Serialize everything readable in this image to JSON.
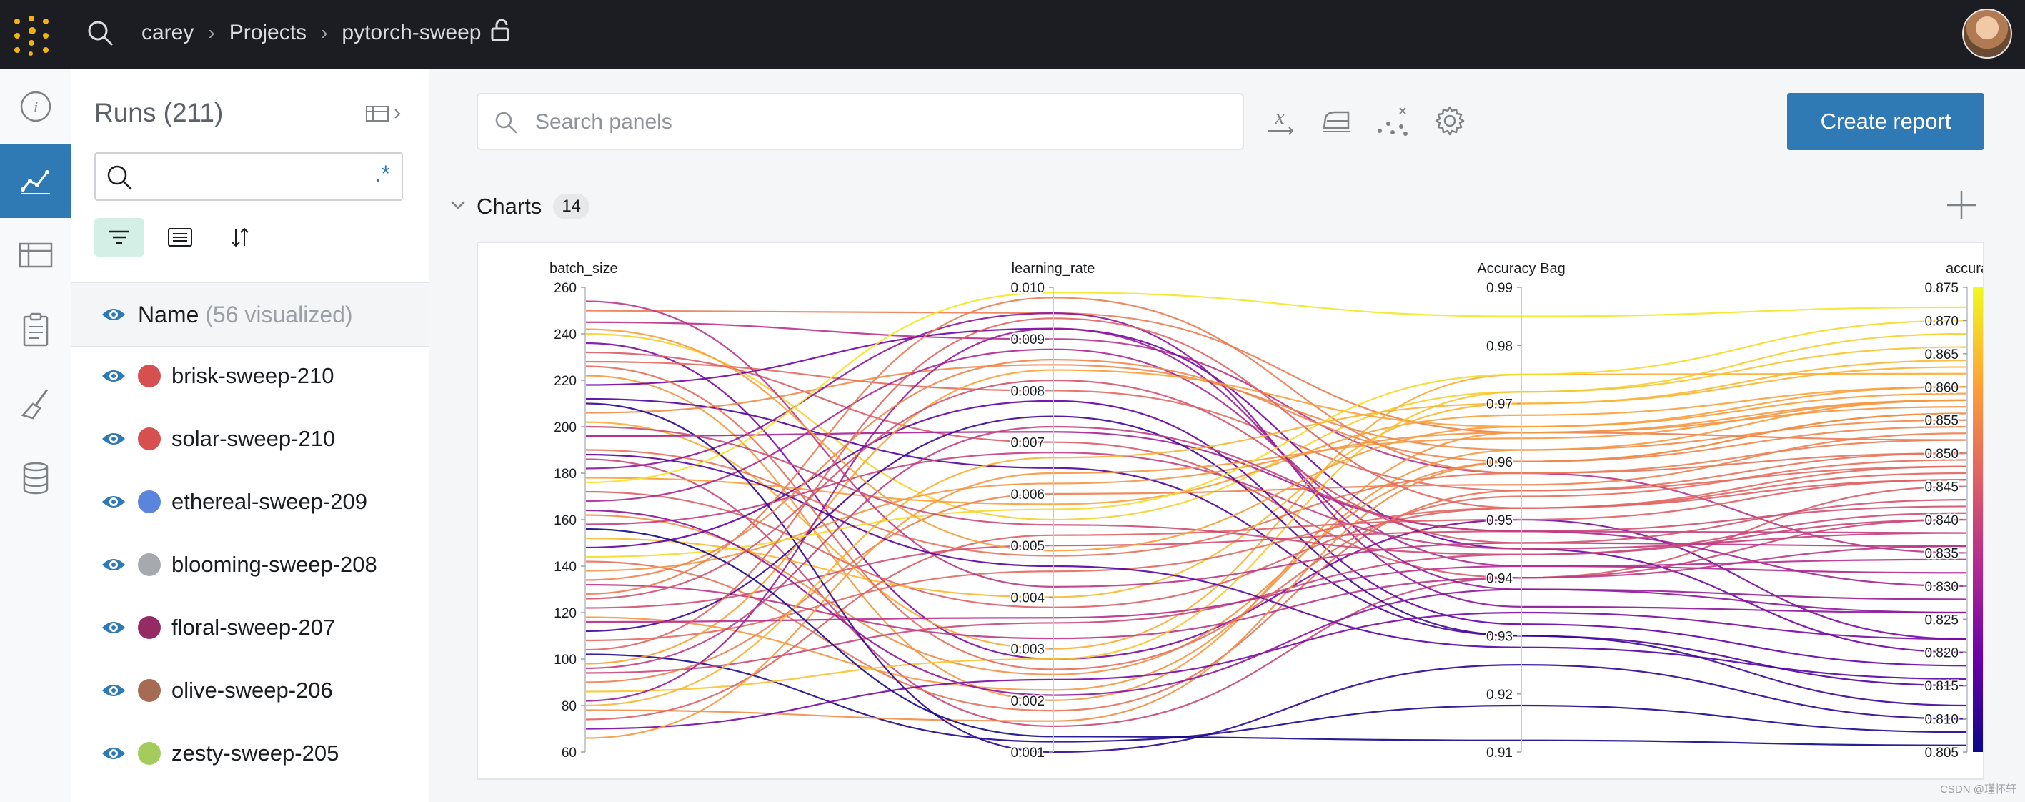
{
  "topbar": {
    "breadcrumb": [
      "carey",
      "Projects",
      "pytorch-sweep"
    ]
  },
  "rail": {
    "items": [
      "info-icon",
      "charts-icon",
      "table-icon",
      "clipboard-icon",
      "broom-icon",
      "database-icon"
    ],
    "active": "charts-icon"
  },
  "runs": {
    "title": "Runs (211)",
    "search_value": "",
    "regex_label": ".*",
    "header_name": "Name",
    "header_visualized": "(56 visualized)",
    "items": [
      {
        "name": "brisk-sweep-210",
        "color": "#d65050"
      },
      {
        "name": "solar-sweep-210",
        "color": "#d65050"
      },
      {
        "name": "ethereal-sweep-209",
        "color": "#5b84dd"
      },
      {
        "name": "blooming-sweep-208",
        "color": "#a6a9ad"
      },
      {
        "name": "floral-sweep-207",
        "color": "#952a64"
      },
      {
        "name": "olive-sweep-206",
        "color": "#a66b53"
      },
      {
        "name": "zesty-sweep-205",
        "color": "#a4cc5c"
      }
    ]
  },
  "main": {
    "search_placeholder": "Search panels",
    "create_report": "Create report",
    "section_title": "Charts",
    "section_count": "14"
  },
  "watermark": "CSDN @瑾怀轩",
  "chart_data": {
    "type": "parallel-coordinates",
    "axes": [
      {
        "name": "batch_size",
        "min": 60,
        "max": 260,
        "ticks": [
          "260",
          "240",
          "220",
          "200",
          "180",
          "160",
          "140",
          "120",
          "100",
          "80",
          "60"
        ]
      },
      {
        "name": "learning_rate",
        "min": 0.001,
        "max": 0.01,
        "ticks": [
          "0.010",
          "0.009",
          "0.008",
          "0.007",
          "0.006",
          "0.005",
          "0.004",
          "0.003",
          "0.002",
          "0.001"
        ]
      },
      {
        "name": "Accuracy Bag",
        "min": 0.91,
        "max": 0.99,
        "ticks": [
          "0.99",
          "0.98",
          "0.97",
          "0.96",
          "0.95",
          "0.94",
          "0.93",
          "0.92",
          "0.91"
        ]
      },
      {
        "name": "accuracy",
        "min": 0.805,
        "max": 0.875,
        "ticks": [
          "0.875",
          "0.870",
          "0.865",
          "0.860",
          "0.855",
          "0.850",
          "0.845",
          "0.840",
          "0.835",
          "0.830",
          "0.825",
          "0.820",
          "0.815",
          "0.810",
          "0.805"
        ]
      }
    ],
    "color_by": "accuracy",
    "colorscale": [
      "#0d0887",
      "#6a00a8",
      "#b12a90",
      "#e16462",
      "#fca636",
      "#f0f921"
    ],
    "lines": [
      [
        250,
        0.0095,
        0.965,
        0.852
      ],
      [
        245,
        0.009,
        0.958,
        0.835
      ],
      [
        240,
        0.0055,
        0.972,
        0.868
      ],
      [
        236,
        0.0028,
        0.95,
        0.822
      ],
      [
        232,
        0.007,
        0.94,
        0.845
      ],
      [
        228,
        0.008,
        0.955,
        0.848
      ],
      [
        222,
        0.002,
        0.965,
        0.858
      ],
      [
        218,
        0.0092,
        0.945,
        0.82
      ],
      [
        212,
        0.0065,
        0.93,
        0.815
      ],
      [
        206,
        0.0085,
        0.962,
        0.855
      ],
      [
        202,
        0.003,
        0.975,
        0.862
      ],
      [
        196,
        0.0072,
        0.948,
        0.83
      ],
      [
        190,
        0.0048,
        0.958,
        0.85
      ],
      [
        186,
        0.0015,
        0.94,
        0.84
      ],
      [
        182,
        0.0095,
        0.935,
        0.826
      ],
      [
        178,
        0.0058,
        0.968,
        0.86
      ],
      [
        172,
        0.0038,
        0.952,
        0.846
      ],
      [
        168,
        0.0088,
        0.942,
        0.832
      ],
      [
        162,
        0.0025,
        0.96,
        0.856
      ],
      [
        158,
        0.0068,
        0.945,
        0.838
      ],
      [
        152,
        0.004,
        0.97,
        0.864
      ],
      [
        148,
        0.0078,
        0.932,
        0.818
      ],
      [
        142,
        0.0018,
        0.955,
        0.85
      ],
      [
        138,
        0.0062,
        0.965,
        0.857
      ],
      [
        132,
        0.0032,
        0.94,
        0.836
      ],
      [
        128,
        0.0098,
        0.958,
        0.852
      ],
      [
        122,
        0.005,
        0.948,
        0.842
      ],
      [
        118,
        0.0022,
        0.962,
        0.858
      ],
      [
        112,
        0.0075,
        0.93,
        0.812
      ],
      [
        108,
        0.0045,
        0.952,
        0.848
      ],
      [
        102,
        0.0012,
        0.918,
        0.808
      ],
      [
        98,
        0.0084,
        0.966,
        0.86
      ],
      [
        94,
        0.0035,
        0.944,
        0.84
      ],
      [
        90,
        0.006,
        0.956,
        0.853
      ],
      [
        86,
        0.0028,
        0.972,
        0.866
      ],
      [
        82,
        0.0092,
        0.938,
        0.828
      ],
      [
        78,
        0.0016,
        0.96,
        0.856
      ],
      [
        74,
        0.0052,
        0.95,
        0.846
      ],
      [
        70,
        0.0024,
        0.934,
        0.822
      ],
      [
        66,
        0.0064,
        0.964,
        0.858
      ],
      [
        254,
        0.0042,
        0.946,
        0.836
      ],
      [
        210,
        0.001,
        0.925,
        0.81
      ],
      [
        176,
        0.0099,
        0.985,
        0.872
      ],
      [
        144,
        0.0057,
        0.975,
        0.87
      ],
      [
        116,
        0.0036,
        0.942,
        0.834
      ],
      [
        96,
        0.0073,
        0.948,
        0.838
      ],
      [
        188,
        0.0046,
        0.928,
        0.816
      ],
      [
        226,
        0.0026,
        0.954,
        0.849
      ],
      [
        134,
        0.0086,
        0.96,
        0.854
      ],
      [
        164,
        0.0021,
        0.938,
        0.826
      ],
      [
        80,
        0.0067,
        0.97,
        0.863
      ],
      [
        200,
        0.0054,
        0.944,
        0.841
      ],
      [
        104,
        0.0094,
        0.952,
        0.847
      ],
      [
        156,
        0.0013,
        0.912,
        0.806
      ],
      [
        242,
        0.0049,
        0.966,
        0.859
      ],
      [
        126,
        0.0082,
        0.946,
        0.843
      ]
    ]
  }
}
